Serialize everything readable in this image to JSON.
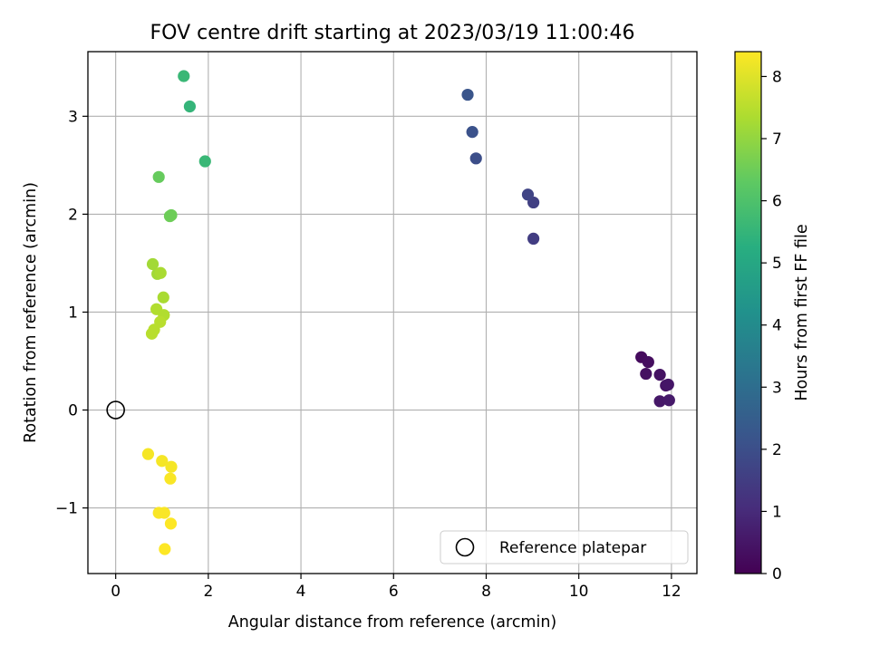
{
  "chart_data": {
    "type": "scatter",
    "title": "FOV centre drift starting at 2023/03/19 11:00:46",
    "xlabel": "Angular distance from reference (arcmin)",
    "ylabel": "Rotation from reference (arcmin)",
    "xlim": [
      -0.6,
      12.55
    ],
    "ylim": [
      -1.67,
      3.66
    ],
    "xticks": [
      0,
      2,
      4,
      6,
      8,
      10,
      12
    ],
    "yticks": [
      -1,
      0,
      1,
      2,
      3
    ],
    "xtick_labels": [
      "0",
      "2",
      "4",
      "6",
      "8",
      "10",
      "12"
    ],
    "ytick_labels": [
      "−1",
      "0",
      "1",
      "2",
      "3"
    ],
    "grid": true,
    "colormap": "viridis",
    "colorbar": {
      "label": "Hours from first FF file",
      "range": [
        0,
        8.4
      ],
      "ticks": [
        0,
        1,
        2,
        3,
        4,
        5,
        6,
        7,
        8
      ],
      "tick_labels": [
        "0",
        "1",
        "2",
        "3",
        "4",
        "5",
        "6",
        "7",
        "8"
      ]
    },
    "legend": {
      "position": "lower-right",
      "entries": [
        {
          "label": "Reference platepar",
          "marker": "open-circle"
        }
      ]
    },
    "reference_point": {
      "x": 0,
      "y": 0
    },
    "points": [
      {
        "x": 11.35,
        "y": 0.54,
        "hours": 0.25
      },
      {
        "x": 11.5,
        "y": 0.49,
        "hours": 0.3
      },
      {
        "x": 11.45,
        "y": 0.37,
        "hours": 0.35
      },
      {
        "x": 11.75,
        "y": 0.36,
        "hours": 0.4
      },
      {
        "x": 11.88,
        "y": 0.25,
        "hours": 0.45
      },
      {
        "x": 11.93,
        "y": 0.26,
        "hours": 0.5
      },
      {
        "x": 11.75,
        "y": 0.09,
        "hours": 0.55
      },
      {
        "x": 11.95,
        "y": 0.1,
        "hours": 0.6
      },
      {
        "x": 9.02,
        "y": 1.75,
        "hours": 1.5
      },
      {
        "x": 9.02,
        "y": 2.12,
        "hours": 1.6
      },
      {
        "x": 8.9,
        "y": 2.2,
        "hours": 1.7
      },
      {
        "x": 7.78,
        "y": 2.57,
        "hours": 2.0
      },
      {
        "x": 7.7,
        "y": 2.84,
        "hours": 2.1
      },
      {
        "x": 7.6,
        "y": 3.22,
        "hours": 2.2
      },
      {
        "x": 1.93,
        "y": 2.54,
        "hours": 5.6
      },
      {
        "x": 1.6,
        "y": 3.1,
        "hours": 5.5
      },
      {
        "x": 1.47,
        "y": 3.41,
        "hours": 5.6
      },
      {
        "x": 0.93,
        "y": 2.38,
        "hours": 6.4
      },
      {
        "x": 1.2,
        "y": 1.99,
        "hours": 6.5
      },
      {
        "x": 1.17,
        "y": 1.98,
        "hours": 6.5
      },
      {
        "x": 0.8,
        "y": 1.49,
        "hours": 7.2
      },
      {
        "x": 0.9,
        "y": 1.39,
        "hours": 7.2
      },
      {
        "x": 0.97,
        "y": 1.4,
        "hours": 7.3
      },
      {
        "x": 1.03,
        "y": 1.15,
        "hours": 7.3
      },
      {
        "x": 0.88,
        "y": 1.03,
        "hours": 7.4
      },
      {
        "x": 1.04,
        "y": 0.97,
        "hours": 7.4
      },
      {
        "x": 0.96,
        "y": 0.9,
        "hours": 7.5
      },
      {
        "x": 0.83,
        "y": 0.82,
        "hours": 7.5
      },
      {
        "x": 0.78,
        "y": 0.78,
        "hours": 7.5
      },
      {
        "x": 0.7,
        "y": -0.45,
        "hours": 8.3
      },
      {
        "x": 1.0,
        "y": -0.52,
        "hours": 8.3
      },
      {
        "x": 1.2,
        "y": -0.58,
        "hours": 8.3
      },
      {
        "x": 1.18,
        "y": -0.7,
        "hours": 8.35
      },
      {
        "x": 0.93,
        "y": -1.05,
        "hours": 8.35
      },
      {
        "x": 1.05,
        "y": -1.05,
        "hours": 8.35
      },
      {
        "x": 1.19,
        "y": -1.16,
        "hours": 8.4
      },
      {
        "x": 1.06,
        "y": -1.42,
        "hours": 8.4
      }
    ]
  }
}
